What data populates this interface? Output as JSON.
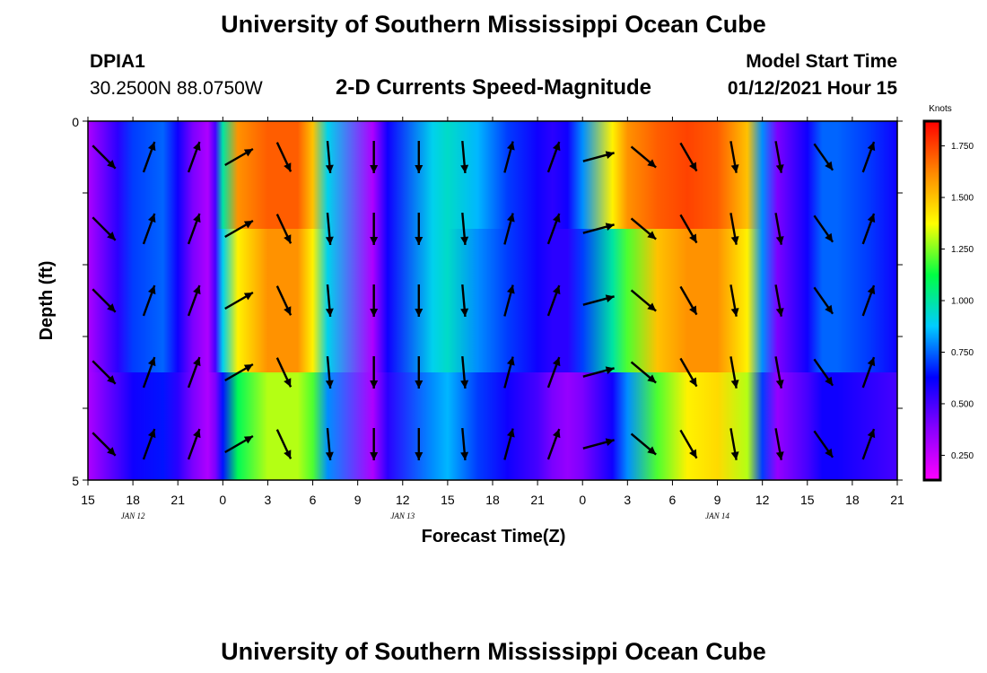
{
  "page": {
    "title": "University of Southern Mississippi Ocean Cube",
    "footer_title": "University of Southern Mississippi Ocean Cube",
    "station_id": "DPIA1",
    "station_coords": "30.2500N 88.0750W",
    "plot_title": "2-D Currents Speed-Magnitude",
    "model_start_label": "Model Start Time",
    "model_start_value": "01/12/2021 Hour 15"
  },
  "chart_data": {
    "type": "heatmap",
    "title": "2-D Currents Speed-Magnitude",
    "xlabel": "Forecast Time(Z)",
    "ylabel": "Depth (ft)",
    "ylim": [
      0,
      5
    ],
    "x_tick_labels": [
      "15",
      "18",
      "21",
      "0",
      "3",
      "6",
      "9",
      "12",
      "15",
      "18",
      "21",
      "0",
      "3",
      "6",
      "9",
      "12",
      "15",
      "18",
      "21"
    ],
    "date_labels": [
      {
        "label": "JAN 12",
        "tick_index": 1
      },
      {
        "label": "JAN 13",
        "tick_index": 7
      },
      {
        "label": "JAN 14",
        "tick_index": 14
      }
    ],
    "y_tick_labels": {
      "top": "0",
      "bottom": "5"
    },
    "y_tick_count": 6,
    "colorbar": {
      "unit": "Knots",
      "min": 0.13,
      "max": 1.87,
      "labels": [
        "1.750",
        "1.500",
        "1.250",
        "1.000",
        "0.750",
        "0.500",
        "0.250"
      ],
      "label_values": [
        1.75,
        1.5,
        1.25,
        1.0,
        0.75,
        0.5,
        0.25
      ]
    },
    "hours": [
      0,
      3,
      6,
      9,
      12,
      15,
      18,
      21,
      24,
      27,
      30,
      33,
      36,
      39,
      42,
      45,
      48,
      51,
      54
    ],
    "depth_layers": [
      0.5,
      1.5,
      2.5,
      3.5,
      4.5
    ],
    "speed_profile_knots": {
      "hour": [
        0,
        2,
        3,
        5,
        6,
        7,
        8,
        8.5,
        9,
        10,
        12,
        14,
        15,
        16,
        19,
        20,
        23,
        24,
        26,
        28,
        30,
        31,
        32,
        33,
        35,
        36,
        38,
        40,
        42,
        44,
        45,
        46,
        48,
        49,
        50,
        52,
        54
      ],
      "top": [
        0.3,
        0.55,
        0.7,
        0.75,
        0.6,
        0.4,
        0.3,
        0.5,
        1.0,
        1.6,
        1.7,
        1.7,
        1.5,
        0.9,
        0.3,
        0.6,
        0.9,
        0.95,
        0.85,
        0.7,
        0.6,
        0.55,
        0.6,
        0.8,
        1.4,
        1.6,
        1.7,
        1.75,
        1.7,
        1.5,
        0.8,
        0.4,
        0.6,
        0.75,
        0.75,
        0.7,
        0.6
      ],
      "mid": [
        0.3,
        0.55,
        0.7,
        0.75,
        0.6,
        0.4,
        0.3,
        0.5,
        0.9,
        1.4,
        1.6,
        1.6,
        1.4,
        0.9,
        0.3,
        0.6,
        0.9,
        0.95,
        0.8,
        0.7,
        0.6,
        0.55,
        0.55,
        0.7,
        1.0,
        1.2,
        1.5,
        1.6,
        1.6,
        1.4,
        0.8,
        0.4,
        0.6,
        0.75,
        0.75,
        0.7,
        0.6
      ],
      "bottom": [
        0.3,
        0.5,
        0.6,
        0.65,
        0.55,
        0.4,
        0.3,
        0.4,
        0.65,
        1.1,
        1.3,
        1.3,
        1.2,
        0.8,
        0.3,
        0.55,
        0.8,
        0.85,
        0.7,
        0.6,
        0.5,
        0.4,
        0.35,
        0.4,
        0.6,
        0.8,
        1.2,
        1.4,
        1.45,
        1.3,
        0.7,
        0.35,
        0.5,
        0.6,
        0.6,
        0.55,
        0.5
      ]
    },
    "vectors": [
      {
        "hour": 0,
        "direction_deg": 135
      },
      {
        "hour": 3,
        "direction_deg": 20
      },
      {
        "hour": 6,
        "direction_deg": 20
      },
      {
        "hour": 9,
        "direction_deg": 60
      },
      {
        "hour": 12,
        "direction_deg": 155
      },
      {
        "hour": 15,
        "direction_deg": 175
      },
      {
        "hour": 18,
        "direction_deg": 180
      },
      {
        "hour": 21,
        "direction_deg": 180
      },
      {
        "hour": 24,
        "direction_deg": 175
      },
      {
        "hour": 27,
        "direction_deg": 15
      },
      {
        "hour": 30,
        "direction_deg": 20
      },
      {
        "hour": 33,
        "direction_deg": 75
      },
      {
        "hour": 36,
        "direction_deg": 130
      },
      {
        "hour": 39,
        "direction_deg": 150
      },
      {
        "hour": 42,
        "direction_deg": 170
      },
      {
        "hour": 45,
        "direction_deg": 170
      },
      {
        "hour": 48,
        "direction_deg": 145
      },
      {
        "hour": 51,
        "direction_deg": 20
      }
    ],
    "colors": {
      "background": "#ffffff",
      "arrow": "#000000",
      "frame": "#000000",
      "colormap": [
        "#ff00ff",
        "#8800ff",
        "#0000ff",
        "#00ccff",
        "#00ff44",
        "#ffff00",
        "#ff8800",
        "#ff0000"
      ]
    }
  }
}
